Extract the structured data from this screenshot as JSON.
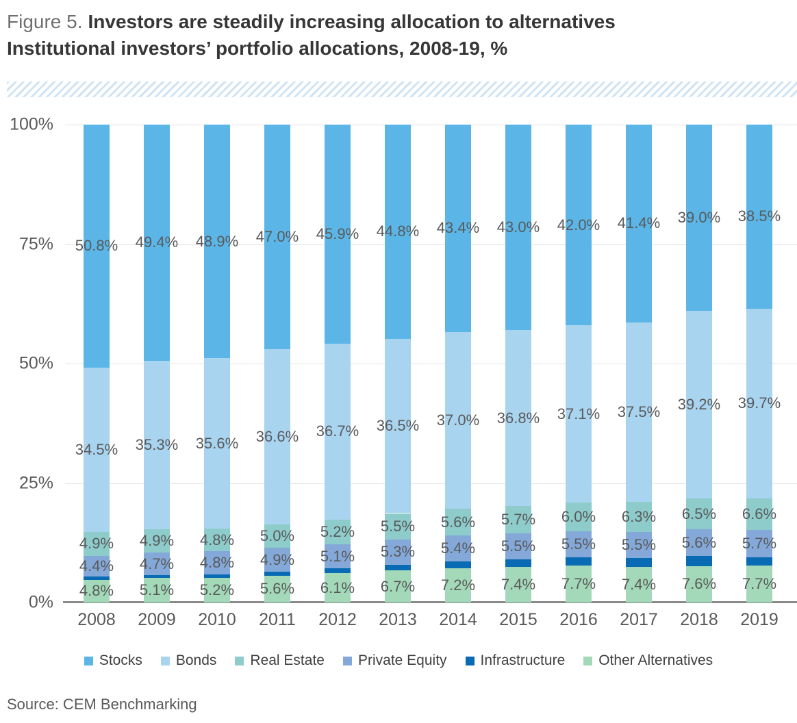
{
  "figure": {
    "label": "Figure 5.",
    "title": "Investors are steadily increasing allocation to alternatives",
    "subtitle": "Institutional investors’ portfolio allocations, 2008-19, %",
    "source": "Source: CEM Benchmarking"
  },
  "chart_data": {
    "type": "bar",
    "stacked": true,
    "title": "Institutional investors’ portfolio allocations, 2008-19, %",
    "categories": [
      "2008",
      "2009",
      "2010",
      "2011",
      "2012",
      "2013",
      "2014",
      "2015",
      "2016",
      "2017",
      "2018",
      "2019"
    ],
    "series": [
      {
        "name": "Stocks",
        "color": "#5bb6e7",
        "labels_shown": true,
        "values": [
          50.8,
          49.4,
          48.9,
          47.0,
          45.9,
          44.8,
          43.4,
          43.0,
          42.0,
          41.4,
          39.0,
          38.5
        ]
      },
      {
        "name": "Bonds",
        "color": "#a9d4f0",
        "labels_shown": true,
        "values": [
          34.5,
          35.3,
          35.6,
          36.6,
          36.7,
          36.5,
          37.0,
          36.8,
          37.1,
          37.5,
          39.2,
          39.7
        ]
      },
      {
        "name": "Real Estate",
        "color": "#8ecccb",
        "labels_shown": true,
        "values": [
          4.9,
          4.9,
          4.8,
          5.0,
          5.2,
          5.5,
          5.6,
          5.7,
          6.0,
          6.3,
          6.5,
          6.6
        ]
      },
      {
        "name": "Private Equity",
        "color": "#84a9d9",
        "labels_shown": true,
        "values": [
          4.4,
          4.7,
          4.8,
          4.9,
          5.1,
          5.3,
          5.4,
          5.5,
          5.5,
          5.5,
          5.6,
          5.7
        ]
      },
      {
        "name": "Infrastructure",
        "color": "#0a6bb5",
        "labels_shown": false,
        "estimated": true,
        "values": [
          0.6,
          0.6,
          0.7,
          0.9,
          1.0,
          1.2,
          1.4,
          1.6,
          1.7,
          1.9,
          2.1,
          1.8
        ]
      },
      {
        "name": "Other Alternatives",
        "color": "#a3d9b9",
        "labels_shown": true,
        "values": [
          4.8,
          5.1,
          5.2,
          5.6,
          6.1,
          6.7,
          7.2,
          7.4,
          7.7,
          7.4,
          7.6,
          7.7
        ]
      }
    ],
    "stack_order_bottom_to_top": [
      "Other Alternatives",
      "Infrastructure",
      "Private Equity",
      "Real Estate",
      "Bonds",
      "Stocks"
    ],
    "y_axis": {
      "range": [
        0,
        100
      ],
      "ticks": [
        0,
        25,
        50,
        75,
        100
      ],
      "tick_suffix": "%"
    },
    "grid": true,
    "legend_position": "bottom",
    "legend": [
      "Stocks",
      "Bonds",
      "Real Estate",
      "Private Equity",
      "Infrastructure",
      "Other Alternatives"
    ]
  }
}
